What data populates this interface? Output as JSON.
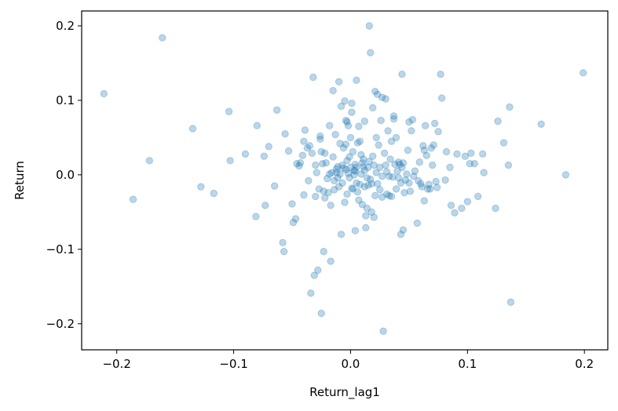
{
  "chart_data": {
    "type": "scatter",
    "xlabel": "Return_lag1",
    "ylabel": "Return",
    "xlim": [
      -0.23,
      0.22
    ],
    "ylim": [
      -0.235,
      0.22
    ],
    "xticks": [
      -0.2,
      -0.1,
      0.0,
      0.1,
      0.2
    ],
    "yticks": [
      -0.2,
      -0.1,
      0.0,
      0.1,
      0.2
    ],
    "xtick_labels": [
      "−0.2",
      "−0.1",
      "0.0",
      "0.1",
      "0.2"
    ],
    "ytick_labels": [
      "−0.2",
      "−0.1",
      "0.0",
      "0.1",
      "0.2"
    ],
    "grid": false,
    "marker_color": "#1f77b4",
    "marker_alpha": 0.3,
    "points": [
      [
        -0.211,
        0.109
      ],
      [
        -0.186,
        -0.033
      ],
      [
        -0.172,
        0.019
      ],
      [
        -0.161,
        0.184
      ],
      [
        -0.135,
        0.062
      ],
      [
        -0.128,
        -0.016
      ],
      [
        -0.117,
        -0.025
      ],
      [
        -0.104,
        0.085
      ],
      [
        -0.103,
        0.019
      ],
      [
        -0.09,
        0.028
      ],
      [
        -0.081,
        -0.056
      ],
      [
        -0.08,
        0.066
      ],
      [
        -0.074,
        0.025
      ],
      [
        -0.073,
        -0.041
      ],
      [
        -0.07,
        0.038
      ],
      [
        -0.065,
        -0.015
      ],
      [
        -0.063,
        0.087
      ],
      [
        -0.058,
        -0.091
      ],
      [
        -0.057,
        -0.103
      ],
      [
        -0.056,
        0.055
      ],
      [
        -0.053,
        0.032
      ],
      [
        -0.05,
        -0.039
      ],
      [
        -0.049,
        -0.064
      ],
      [
        -0.047,
        -0.059
      ],
      [
        -0.046,
        0.015
      ],
      [
        -0.044,
        0.012
      ],
      [
        -0.043,
        0.016
      ],
      [
        -0.041,
        0.026
      ],
      [
        -0.04,
        -0.027
      ],
      [
        -0.04,
        0.045
      ],
      [
        -0.039,
        0.06
      ],
      [
        -0.037,
        0.036
      ],
      [
        -0.036,
        -0.008
      ],
      [
        -0.035,
        0.039
      ],
      [
        -0.034,
        -0.159
      ],
      [
        -0.033,
        0.029
      ],
      [
        -0.032,
        0.131
      ],
      [
        -0.031,
        -0.135
      ],
      [
        -0.03,
        -0.029
      ],
      [
        -0.03,
        0.013
      ],
      [
        -0.029,
        0.003
      ],
      [
        -0.028,
        -0.128
      ],
      [
        -0.027,
        -0.019
      ],
      [
        -0.026,
        0.048
      ],
      [
        -0.026,
        0.052
      ],
      [
        -0.025,
        0.031
      ],
      [
        -0.025,
        -0.186
      ],
      [
        -0.024,
        0.015
      ],
      [
        -0.023,
        -0.022
      ],
      [
        -0.023,
        -0.103
      ],
      [
        -0.022,
        0.029
      ],
      [
        -0.022,
        -0.031
      ],
      [
        -0.021,
        0.016
      ],
      [
        -0.02,
        -0.005
      ],
      [
        -0.019,
        -0.024
      ],
      [
        -0.018,
        0.001
      ],
      [
        -0.018,
        0.066
      ],
      [
        -0.017,
        -0.041
      ],
      [
        -0.017,
        -0.116
      ],
      [
        -0.016,
        0.003
      ],
      [
        -0.015,
        0.113
      ],
      [
        -0.015,
        0.024
      ],
      [
        -0.014,
        -0.02
      ],
      [
        -0.014,
        -0.008
      ],
      [
        -0.013,
        0.054
      ],
      [
        -0.012,
        0.008
      ],
      [
        -0.012,
        0.003
      ],
      [
        -0.011,
        0.011
      ],
      [
        -0.011,
        -0.004
      ],
      [
        -0.01,
        -0.016
      ],
      [
        -0.01,
        0.125
      ],
      [
        -0.009,
        0.042
      ],
      [
        -0.009,
        0.001
      ],
      [
        -0.008,
        -0.08
      ],
      [
        -0.008,
        0.092
      ],
      [
        -0.007,
        0.013
      ],
      [
        -0.007,
        -0.011
      ],
      [
        -0.006,
        0.009
      ],
      [
        -0.006,
        0.036
      ],
      [
        -0.005,
        -0.037
      ],
      [
        -0.005,
        0.099
      ],
      [
        -0.004,
        0.073
      ],
      [
        -0.004,
        0.007
      ],
      [
        -0.004,
        0.041
      ],
      [
        -0.003,
        0.019
      ],
      [
        -0.003,
        -0.026
      ],
      [
        -0.003,
        0.071
      ],
      [
        -0.002,
        0.066
      ],
      [
        -0.002,
        0.002
      ],
      [
        -0.001,
        0.024
      ],
      [
        -0.001,
        -0.004
      ],
      [
        0.0,
        0.05
      ],
      [
        0.0,
        0.01
      ],
      [
        0.001,
        0.096
      ],
      [
        0.001,
        -0.018
      ],
      [
        0.001,
        0.084
      ],
      [
        0.002,
        0.031
      ],
      [
        0.002,
        -0.019
      ],
      [
        0.003,
        0.006
      ],
      [
        0.003,
        0.0
      ],
      [
        0.004,
        0.014
      ],
      [
        0.004,
        -0.075
      ],
      [
        0.004,
        0.005
      ],
      [
        0.005,
        0.127
      ],
      [
        0.005,
        0.01
      ],
      [
        0.005,
        -0.011
      ],
      [
        0.006,
        -0.023
      ],
      [
        0.006,
        0.043
      ],
      [
        0.007,
        0.065
      ],
      [
        0.007,
        -0.034
      ],
      [
        0.008,
        -0.013
      ],
      [
        0.008,
        0.045
      ],
      [
        0.009,
        0.027
      ],
      [
        0.009,
        0.001
      ],
      [
        0.01,
        -0.04
      ],
      [
        0.01,
        0.016
      ],
      [
        0.011,
        0.021
      ],
      [
        0.011,
        0.011
      ],
      [
        0.012,
        -0.016
      ],
      [
        0.012,
        0.006
      ],
      [
        0.012,
        0.072
      ],
      [
        0.013,
        -0.055
      ],
      [
        0.013,
        -0.071
      ],
      [
        0.014,
        -0.045
      ],
      [
        0.014,
        -0.004
      ],
      [
        0.015,
        0.01
      ],
      [
        0.015,
        -0.014
      ],
      [
        0.016,
        0.2
      ],
      [
        0.016,
        0.018
      ],
      [
        0.017,
        0.164
      ],
      [
        0.017,
        -0.006
      ],
      [
        0.018,
        -0.05
      ],
      [
        0.018,
        -0.012
      ],
      [
        0.019,
        0.09
      ],
      [
        0.019,
        0.025
      ],
      [
        0.02,
        -0.057
      ],
      [
        0.02,
        0.013
      ],
      [
        0.021,
        0.112
      ],
      [
        0.021,
        -0.028
      ],
      [
        0.022,
        0.05
      ],
      [
        0.022,
        0.003
      ],
      [
        0.023,
        -0.012
      ],
      [
        0.023,
        0.108
      ],
      [
        0.024,
        0.04
      ],
      [
        0.025,
        -0.02
      ],
      [
        0.025,
        0.01
      ],
      [
        0.026,
        0.073
      ],
      [
        0.027,
        0.104
      ],
      [
        0.027,
        -0.03
      ],
      [
        0.027,
        -0.002
      ],
      [
        0.028,
        -0.21
      ],
      [
        0.029,
        0.029
      ],
      [
        0.03,
        0.013
      ],
      [
        0.03,
        0.102
      ],
      [
        0.031,
        -0.026
      ],
      [
        0.031,
        0.004
      ],
      [
        0.032,
        0.059
      ],
      [
        0.033,
        -0.028
      ],
      [
        0.033,
        -0.002
      ],
      [
        0.034,
        0.021
      ],
      [
        0.035,
        0.045
      ],
      [
        0.035,
        -0.029
      ],
      [
        0.036,
        -0.003
      ],
      [
        0.037,
        0.079
      ],
      [
        0.037,
        0.075
      ],
      [
        0.038,
        0.014
      ],
      [
        0.039,
        -0.019
      ],
      [
        0.039,
        0.05
      ],
      [
        0.04,
        0.005
      ],
      [
        0.041,
        -0.004
      ],
      [
        0.041,
        0.017
      ],
      [
        0.042,
        0.014
      ],
      [
        0.043,
        -0.011
      ],
      [
        0.043,
        -0.08
      ],
      [
        0.044,
        0.135
      ],
      [
        0.044,
        0.01
      ],
      [
        0.045,
        -0.074
      ],
      [
        0.045,
        0.016
      ],
      [
        0.046,
        -0.024
      ],
      [
        0.047,
        -0.007
      ],
      [
        0.048,
        0.001
      ],
      [
        0.049,
        0.033
      ],
      [
        0.05,
        0.071
      ],
      [
        0.05,
        -0.011
      ],
      [
        0.051,
        -0.022
      ],
      [
        0.052,
        0.059
      ],
      [
        0.053,
        0.074
      ],
      [
        0.054,
        -0.002
      ],
      [
        0.055,
        0.005
      ],
      [
        0.057,
        -0.065
      ],
      [
        0.058,
        -0.008
      ],
      [
        0.059,
        0.017
      ],
      [
        0.06,
        -0.012
      ],
      [
        0.061,
        -0.016
      ],
      [
        0.062,
        0.039
      ],
      [
        0.063,
        -0.035
      ],
      [
        0.063,
        0.033
      ],
      [
        0.064,
        0.066
      ],
      [
        0.065,
        0.026
      ],
      [
        0.066,
        -0.019
      ],
      [
        0.067,
        -0.013
      ],
      [
        0.068,
        -0.019
      ],
      [
        0.069,
        0.036
      ],
      [
        0.07,
        0.013
      ],
      [
        0.071,
        0.04
      ],
      [
        0.072,
        0.069
      ],
      [
        0.073,
        -0.009
      ],
      [
        0.074,
        -0.017
      ],
      [
        0.075,
        0.058
      ],
      [
        0.077,
        0.135
      ],
      [
        0.078,
        0.103
      ],
      [
        0.081,
        -0.007
      ],
      [
        0.082,
        0.031
      ],
      [
        0.085,
        0.01
      ],
      [
        0.086,
        -0.041
      ],
      [
        0.089,
        -0.051
      ],
      [
        0.091,
        0.028
      ],
      [
        0.095,
        -0.045
      ],
      [
        0.098,
        0.025
      ],
      [
        0.1,
        -0.036
      ],
      [
        0.102,
        0.015
      ],
      [
        0.103,
        0.029
      ],
      [
        0.106,
        0.015
      ],
      [
        0.109,
        -0.029
      ],
      [
        0.113,
        0.028
      ],
      [
        0.114,
        0.003
      ],
      [
        0.124,
        -0.045
      ],
      [
        0.126,
        0.072
      ],
      [
        0.131,
        0.043
      ],
      [
        0.135,
        0.013
      ],
      [
        0.136,
        0.091
      ],
      [
        0.137,
        -0.171
      ],
      [
        0.163,
        0.068
      ],
      [
        0.184,
        0.0
      ],
      [
        0.199,
        0.137
      ]
    ]
  }
}
